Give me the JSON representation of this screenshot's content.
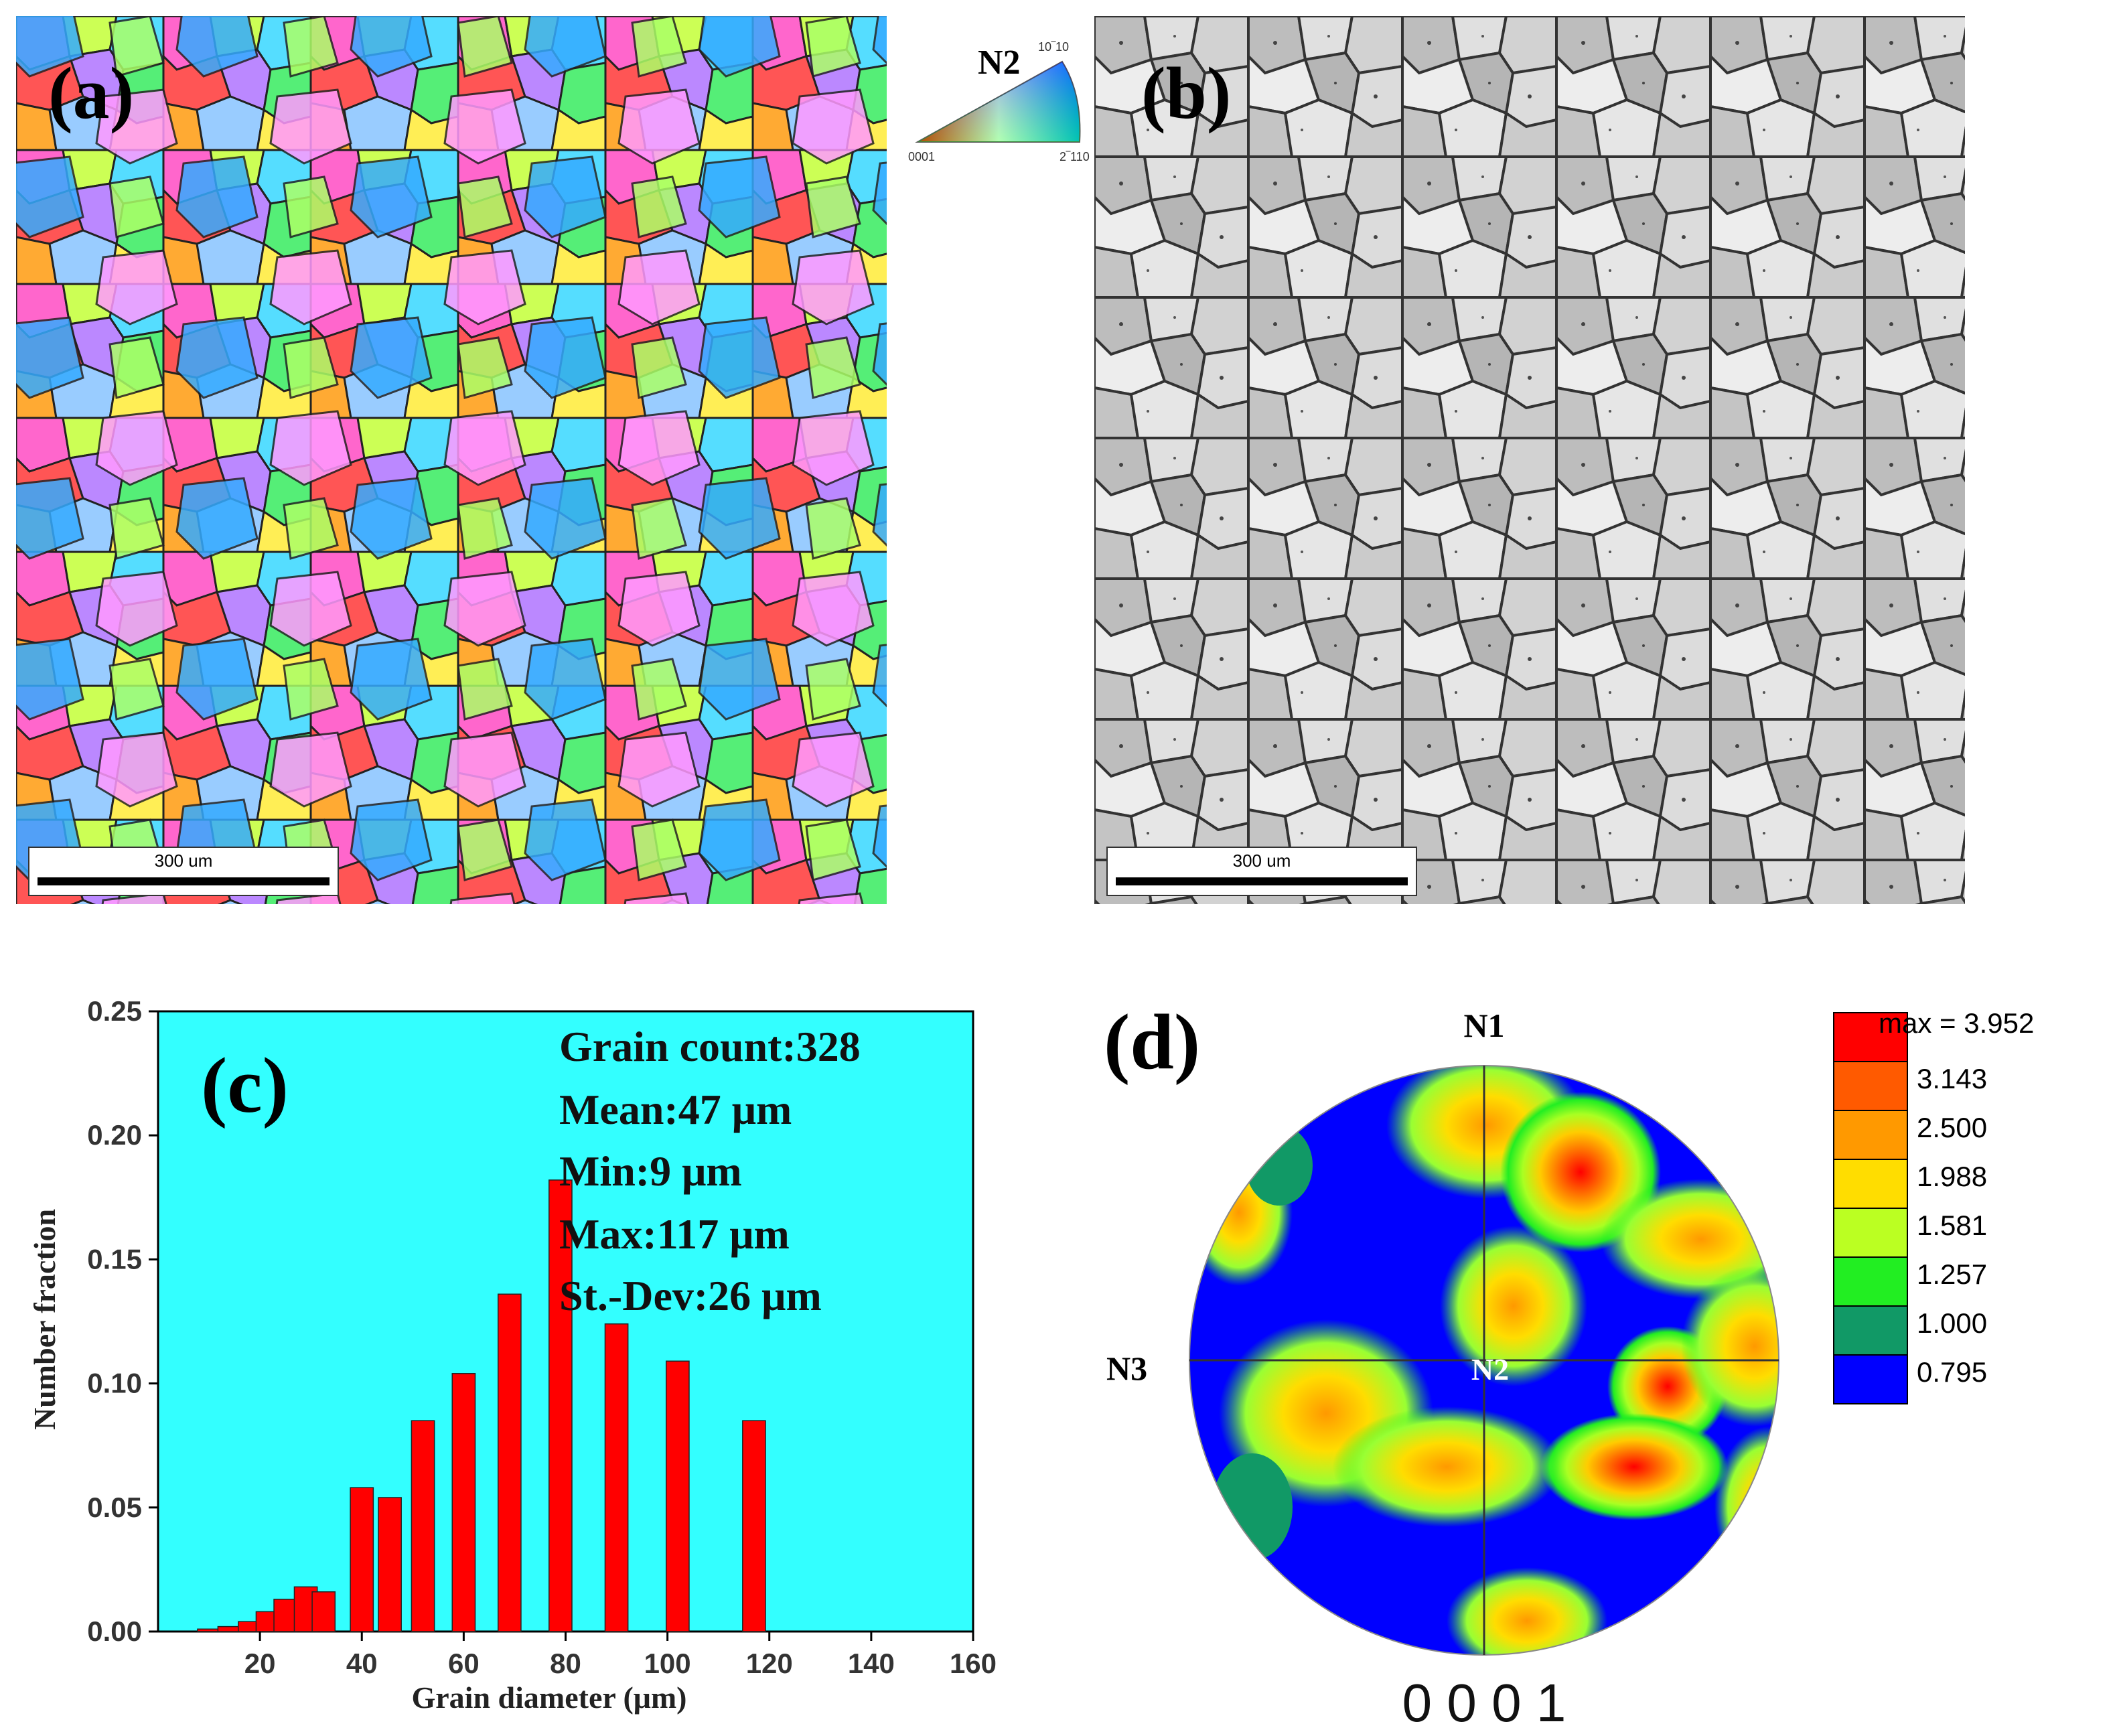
{
  "panel_a": {
    "label": "(a)",
    "legend_title": "N2",
    "legend_corner_top": "10‾10",
    "legend_corner_left": "0001",
    "legend_corner_right": "2‾110",
    "scale_bar": "300 um"
  },
  "panel_b": {
    "label": "(b)",
    "scale_bar": "300 um"
  },
  "panel_c": {
    "label": "(c)",
    "stats": {
      "count": "Grain count:328",
      "mean": "Mean:47 μm",
      "min": "Min:9 μm",
      "max": "Max:117 μm",
      "stdev": "St.-Dev:26 μm"
    }
  },
  "chart_data": {
    "type": "bar",
    "title": "",
    "xlabel": "Grain diameter (μm)",
    "ylabel": "Number fraction",
    "xlim": [
      0,
      160
    ],
    "ylim": [
      0,
      0.25
    ],
    "x_ticks": [
      20,
      40,
      60,
      80,
      100,
      120,
      140,
      160
    ],
    "y_ticks": [
      "0.00",
      "0.05",
      "0.10",
      "0.15",
      "0.20",
      "0.25"
    ],
    "bar_width": 4.5,
    "x": [
      10,
      14,
      18,
      21.5,
      25,
      29,
      32.5,
      40,
      45.5,
      52,
      60,
      69,
      79,
      90,
      102,
      117
    ],
    "values": [
      0.001,
      0.002,
      0.004,
      0.008,
      0.013,
      0.018,
      0.016,
      0.058,
      0.054,
      0.085,
      0.104,
      0.136,
      0.182,
      0.124,
      0.109,
      0.085
    ],
    "bar_color": "#ff0000",
    "background": "#33ffff"
  },
  "panel_d": {
    "label": "(d)",
    "n1": "N1",
    "n2": "N2",
    "n3": "N3",
    "pole": "0 0 0 1",
    "legend": {
      "max": "max = 3.952",
      "levels": [
        "3.143",
        "2.500",
        "1.988",
        "1.581",
        "1.257",
        "1.000",
        "0.795"
      ],
      "colors": [
        "#ff0000",
        "#ff5a00",
        "#ff9900",
        "#ffdd00",
        "#bbff22",
        "#22ee22",
        "#119966",
        "#0000ff"
      ]
    }
  }
}
